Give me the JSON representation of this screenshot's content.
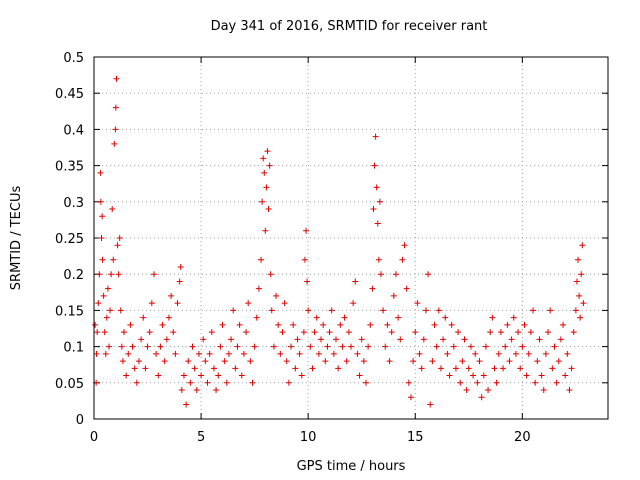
{
  "chart_data": {
    "type": "scatter",
    "title": "Day 341 of 2016, SRMTID for receiver rant",
    "xlabel": "GPS time / hours",
    "ylabel": "SRMTID / TECUs",
    "xlim": [
      0,
      24
    ],
    "ylim": [
      0,
      0.5
    ],
    "xticks": [
      0,
      5,
      10,
      15,
      20
    ],
    "xtick_labels": [
      "0",
      "5",
      "10",
      "15",
      "20"
    ],
    "yticks": [
      0,
      0.05,
      0.1,
      0.15,
      0.2,
      0.25,
      0.3,
      0.35,
      0.4,
      0.45,
      0.5
    ],
    "ytick_labels": [
      "0",
      "0.05",
      "0.1",
      "0.15",
      "0.2",
      "0.25",
      "0.3",
      "0.35",
      "0.4",
      "0.45",
      "0.5"
    ],
    "grid": true,
    "marker": "+",
    "color": "#e00000",
    "series": [
      {
        "name": "SRMTID",
        "points": [
          [
            0.05,
            0.13
          ],
          [
            0.1,
            0.05
          ],
          [
            0.12,
            0.09
          ],
          [
            0.15,
            0.12
          ],
          [
            0.2,
            0.16
          ],
          [
            0.25,
            0.2
          ],
          [
            0.3,
            0.34
          ],
          [
            0.32,
            0.3
          ],
          [
            0.35,
            0.25
          ],
          [
            0.38,
            0.28
          ],
          [
            0.4,
            0.22
          ],
          [
            0.45,
            0.17
          ],
          [
            0.5,
            0.12
          ],
          [
            0.55,
            0.09
          ],
          [
            0.6,
            0.14
          ],
          [
            0.65,
            0.18
          ],
          [
            0.7,
            0.1
          ],
          [
            0.75,
            0.15
          ],
          [
            0.8,
            0.2
          ],
          [
            0.85,
            0.29
          ],
          [
            0.9,
            0.22
          ],
          [
            0.95,
            0.38
          ],
          [
            1.0,
            0.4
          ],
          [
            1.02,
            0.43
          ],
          [
            1.05,
            0.47
          ],
          [
            1.1,
            0.24
          ],
          [
            1.15,
            0.2
          ],
          [
            1.2,
            0.25
          ],
          [
            1.25,
            0.15
          ],
          [
            1.3,
            0.1
          ],
          [
            1.35,
            0.08
          ],
          [
            1.4,
            0.12
          ],
          [
            1.5,
            0.06
          ],
          [
            1.6,
            0.09
          ],
          [
            1.7,
            0.13
          ],
          [
            1.8,
            0.1
          ],
          [
            1.9,
            0.07
          ],
          [
            2.0,
            0.05
          ],
          [
            2.1,
            0.08
          ],
          [
            2.2,
            0.11
          ],
          [
            2.3,
            0.14
          ],
          [
            2.4,
            0.07
          ],
          [
            2.5,
            0.1
          ],
          [
            2.6,
            0.12
          ],
          [
            2.7,
            0.16
          ],
          [
            2.8,
            0.2
          ],
          [
            2.9,
            0.09
          ],
          [
            3.0,
            0.06
          ],
          [
            3.1,
            0.1
          ],
          [
            3.2,
            0.13
          ],
          [
            3.3,
            0.08
          ],
          [
            3.4,
            0.11
          ],
          [
            3.5,
            0.14
          ],
          [
            3.6,
            0.17
          ],
          [
            3.7,
            0.12
          ],
          [
            3.8,
            0.09
          ],
          [
            3.9,
            0.16
          ],
          [
            4.0,
            0.19
          ],
          [
            4.05,
            0.21
          ],
          [
            4.1,
            0.04
          ],
          [
            4.2,
            0.06
          ],
          [
            4.3,
            0.02
          ],
          [
            4.4,
            0.08
          ],
          [
            4.5,
            0.05
          ],
          [
            4.6,
            0.1
          ],
          [
            4.7,
            0.07
          ],
          [
            4.8,
            0.04
          ],
          [
            4.9,
            0.09
          ],
          [
            5.0,
            0.06
          ],
          [
            5.1,
            0.11
          ],
          [
            5.2,
            0.08
          ],
          [
            5.3,
            0.05
          ],
          [
            5.4,
            0.09
          ],
          [
            5.5,
            0.12
          ],
          [
            5.6,
            0.07
          ],
          [
            5.7,
            0.04
          ],
          [
            5.8,
            0.06
          ],
          [
            5.9,
            0.1
          ],
          [
            6.0,
            0.13
          ],
          [
            6.1,
            0.08
          ],
          [
            6.2,
            0.05
          ],
          [
            6.3,
            0.09
          ],
          [
            6.4,
            0.11
          ],
          [
            6.5,
            0.15
          ],
          [
            6.6,
            0.07
          ],
          [
            6.7,
            0.1
          ],
          [
            6.8,
            0.13
          ],
          [
            6.9,
            0.06
          ],
          [
            7.0,
            0.09
          ],
          [
            7.1,
            0.12
          ],
          [
            7.2,
            0.16
          ],
          [
            7.3,
            0.08
          ],
          [
            7.4,
            0.05
          ],
          [
            7.5,
            0.1
          ],
          [
            7.6,
            0.14
          ],
          [
            7.7,
            0.18
          ],
          [
            7.8,
            0.22
          ],
          [
            7.85,
            0.3
          ],
          [
            7.9,
            0.36
          ],
          [
            7.95,
            0.34
          ],
          [
            8.0,
            0.26
          ],
          [
            8.05,
            0.32
          ],
          [
            8.1,
            0.37
          ],
          [
            8.15,
            0.29
          ],
          [
            8.2,
            0.35
          ],
          [
            8.25,
            0.2
          ],
          [
            8.3,
            0.15
          ],
          [
            8.4,
            0.1
          ],
          [
            8.5,
            0.17
          ],
          [
            8.6,
            0.13
          ],
          [
            8.7,
            0.09
          ],
          [
            8.8,
            0.12
          ],
          [
            8.9,
            0.16
          ],
          [
            9.0,
            0.08
          ],
          [
            9.1,
            0.05
          ],
          [
            9.2,
            0.1
          ],
          [
            9.3,
            0.13
          ],
          [
            9.4,
            0.07
          ],
          [
            9.5,
            0.11
          ],
          [
            9.6,
            0.09
          ],
          [
            9.7,
            0.06
          ],
          [
            9.8,
            0.12
          ],
          [
            9.85,
            0.22
          ],
          [
            9.9,
            0.26
          ],
          [
            9.95,
            0.19
          ],
          [
            10.0,
            0.15
          ],
          [
            10.1,
            0.1
          ],
          [
            10.2,
            0.07
          ],
          [
            10.3,
            0.12
          ],
          [
            10.4,
            0.14
          ],
          [
            10.5,
            0.09
          ],
          [
            10.6,
            0.11
          ],
          [
            10.7,
            0.13
          ],
          [
            10.8,
            0.08
          ],
          [
            10.9,
            0.1
          ],
          [
            11.0,
            0.12
          ],
          [
            11.1,
            0.15
          ],
          [
            11.2,
            0.09
          ],
          [
            11.3,
            0.11
          ],
          [
            11.4,
            0.07
          ],
          [
            11.5,
            0.13
          ],
          [
            11.6,
            0.1
          ],
          [
            11.7,
            0.14
          ],
          [
            11.8,
            0.08
          ],
          [
            11.9,
            0.12
          ],
          [
            12.0,
            0.1
          ],
          [
            12.1,
            0.16
          ],
          [
            12.2,
            0.19
          ],
          [
            12.3,
            0.09
          ],
          [
            12.4,
            0.06
          ],
          [
            12.5,
            0.11
          ],
          [
            12.6,
            0.08
          ],
          [
            12.7,
            0.05
          ],
          [
            12.8,
            0.1
          ],
          [
            12.9,
            0.13
          ],
          [
            13.0,
            0.18
          ],
          [
            13.05,
            0.29
          ],
          [
            13.1,
            0.35
          ],
          [
            13.15,
            0.39
          ],
          [
            13.2,
            0.32
          ],
          [
            13.25,
            0.27
          ],
          [
            13.3,
            0.22
          ],
          [
            13.35,
            0.3
          ],
          [
            13.4,
            0.2
          ],
          [
            13.5,
            0.15
          ],
          [
            13.6,
            0.1
          ],
          [
            13.7,
            0.13
          ],
          [
            13.8,
            0.08
          ],
          [
            13.9,
            0.12
          ],
          [
            14.0,
            0.17
          ],
          [
            14.1,
            0.2
          ],
          [
            14.2,
            0.14
          ],
          [
            14.3,
            0.11
          ],
          [
            14.4,
            0.22
          ],
          [
            14.5,
            0.24
          ],
          [
            14.6,
            0.18
          ],
          [
            14.7,
            0.05
          ],
          [
            14.8,
            0.03
          ],
          [
            14.9,
            0.08
          ],
          [
            15.0,
            0.12
          ],
          [
            15.1,
            0.16
          ],
          [
            15.2,
            0.09
          ],
          [
            15.3,
            0.07
          ],
          [
            15.4,
            0.11
          ],
          [
            15.5,
            0.15
          ],
          [
            15.6,
            0.2
          ],
          [
            15.7,
            0.02
          ],
          [
            15.8,
            0.08
          ],
          [
            15.9,
            0.13
          ],
          [
            16.0,
            0.1
          ],
          [
            16.1,
            0.15
          ],
          [
            16.2,
            0.07
          ],
          [
            16.3,
            0.11
          ],
          [
            16.4,
            0.14
          ],
          [
            16.5,
            0.09
          ],
          [
            16.6,
            0.06
          ],
          [
            16.7,
            0.13
          ],
          [
            16.8,
            0.1
          ],
          [
            16.9,
            0.07
          ],
          [
            17.0,
            0.12
          ],
          [
            17.1,
            0.05
          ],
          [
            17.2,
            0.08
          ],
          [
            17.3,
            0.11
          ],
          [
            17.4,
            0.04
          ],
          [
            17.5,
            0.07
          ],
          [
            17.6,
            0.1
          ],
          [
            17.7,
            0.06
          ],
          [
            17.8,
            0.09
          ],
          [
            17.9,
            0.05
          ],
          [
            18.0,
            0.08
          ],
          [
            18.1,
            0.03
          ],
          [
            18.2,
            0.06
          ],
          [
            18.3,
            0.1
          ],
          [
            18.4,
            0.04
          ],
          [
            18.5,
            0.12
          ],
          [
            18.6,
            0.14
          ],
          [
            18.7,
            0.07
          ],
          [
            18.8,
            0.05
          ],
          [
            18.9,
            0.09
          ],
          [
            19.0,
            0.12
          ],
          [
            19.1,
            0.07
          ],
          [
            19.2,
            0.1
          ],
          [
            19.3,
            0.13
          ],
          [
            19.4,
            0.08
          ],
          [
            19.5,
            0.11
          ],
          [
            19.6,
            0.14
          ],
          [
            19.7,
            0.09
          ],
          [
            19.8,
            0.12
          ],
          [
            19.9,
            0.07
          ],
          [
            20.0,
            0.1
          ],
          [
            20.1,
            0.13
          ],
          [
            20.2,
            0.06
          ],
          [
            20.3,
            0.09
          ],
          [
            20.4,
            0.12
          ],
          [
            20.5,
            0.15
          ],
          [
            20.6,
            0.05
          ],
          [
            20.7,
            0.08
          ],
          [
            20.8,
            0.11
          ],
          [
            20.9,
            0.06
          ],
          [
            21.0,
            0.04
          ],
          [
            21.1,
            0.09
          ],
          [
            21.2,
            0.12
          ],
          [
            21.3,
            0.15
          ],
          [
            21.4,
            0.07
          ],
          [
            21.5,
            0.1
          ],
          [
            21.6,
            0.05
          ],
          [
            21.7,
            0.08
          ],
          [
            21.8,
            0.11
          ],
          [
            21.9,
            0.13
          ],
          [
            22.0,
            0.06
          ],
          [
            22.1,
            0.09
          ],
          [
            22.2,
            0.04
          ],
          [
            22.3,
            0.07
          ],
          [
            22.4,
            0.12
          ],
          [
            22.5,
            0.15
          ],
          [
            22.55,
            0.19
          ],
          [
            22.6,
            0.22
          ],
          [
            22.65,
            0.17
          ],
          [
            22.7,
            0.14
          ],
          [
            22.75,
            0.2
          ],
          [
            22.8,
            0.24
          ],
          [
            22.85,
            0.16
          ]
        ]
      }
    ]
  }
}
